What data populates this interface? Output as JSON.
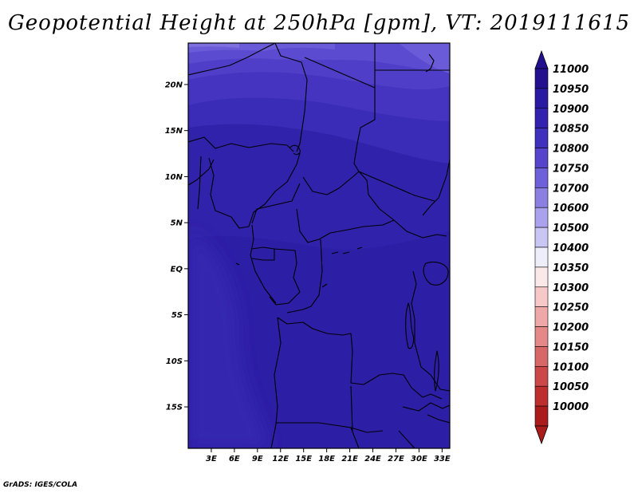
{
  "title": "Geopotential Height at 250hPa [gpm], VT: 2019111615",
  "credit": "GrADS: IGES/COLA",
  "map": {
    "variable": "Geopotential Height",
    "level": "250hPa",
    "units": "gpm",
    "valid_time": "2019111615",
    "lat_range": [
      -19.5,
      24.5
    ],
    "lon_range": [
      0,
      34
    ],
    "lat_ticks": [
      {
        "value": 20,
        "label": "20N"
      },
      {
        "value": 15,
        "label": "15N"
      },
      {
        "value": 10,
        "label": "10N"
      },
      {
        "value": 5,
        "label": "5N"
      },
      {
        "value": 0,
        "label": "EQ"
      },
      {
        "value": -5,
        "label": "5S"
      },
      {
        "value": -10,
        "label": "10S"
      },
      {
        "value": -15,
        "label": "15S"
      }
    ],
    "lon_ticks": [
      {
        "value": 3,
        "label": "3E"
      },
      {
        "value": 6,
        "label": "6E"
      },
      {
        "value": 9,
        "label": "9E"
      },
      {
        "value": 12,
        "label": "12E"
      },
      {
        "value": 15,
        "label": "15E"
      },
      {
        "value": 18,
        "label": "18E"
      },
      {
        "value": 21,
        "label": "21E"
      },
      {
        "value": 24,
        "label": "24E"
      },
      {
        "value": 27,
        "label": "27E"
      },
      {
        "value": 30,
        "label": "30E"
      },
      {
        "value": 33,
        "label": "33E"
      }
    ]
  },
  "colorbar": {
    "levels": [
      {
        "label": "11000",
        "color": "#22108f"
      },
      {
        "label": "10950",
        "color": "#2a1aa3"
      },
      {
        "label": "10900",
        "color": "#3322b0"
      },
      {
        "label": "10850",
        "color": "#3f30be"
      },
      {
        "label": "10800",
        "color": "#5645cc"
      },
      {
        "label": "10750",
        "color": "#6e60d8"
      },
      {
        "label": "10700",
        "color": "#8b80e2"
      },
      {
        "label": "10600",
        "color": "#aaa2ec"
      },
      {
        "label": "10500",
        "color": "#cac6f4"
      },
      {
        "label": "10400",
        "color": "#eeeefb"
      },
      {
        "label": "10350",
        "color": "#fbe8e8"
      },
      {
        "label": "10300",
        "color": "#f6c8c8"
      },
      {
        "label": "10250",
        "color": "#eea8a8"
      },
      {
        "label": "10200",
        "color": "#e48888"
      },
      {
        "label": "10150",
        "color": "#d86868"
      },
      {
        "label": "10100",
        "color": "#cc4848"
      },
      {
        "label": "10050",
        "color": "#bd2f2f"
      },
      {
        "label": "10000",
        "color": "#aa1c1c"
      }
    ],
    "bottom_arrow_color": "#aa1c1c",
    "top_arrow_color": "#22108f"
  }
}
